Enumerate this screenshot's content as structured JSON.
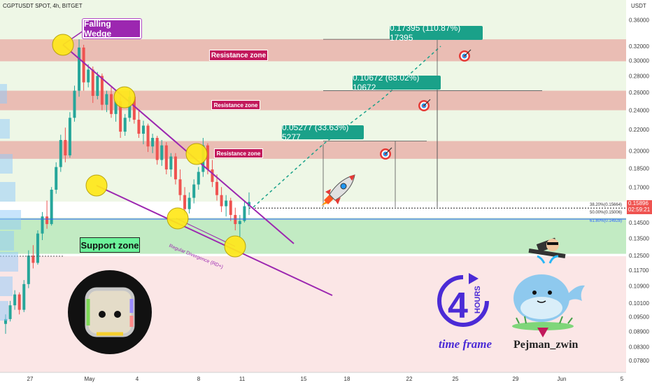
{
  "header": {
    "symbol": "CGPTUSDT SPOT, 4h, BITGET",
    "currency": "USDT"
  },
  "price_badge": {
    "price": "0.15896",
    "countdown": "02:59:21"
  },
  "annotations": {
    "pattern": "Falling Wedge",
    "resistance_1": "Resistance zone",
    "resistance_2": "Resistance zone",
    "resistance_3": "Resistance zone",
    "support": "Support zone",
    "target_1": "0.05277 (33.63%) 5277",
    "target_2": "0.10672 (68.02%) 10672",
    "target_3": "0.17395 (110.87%) 17395",
    "divergence": "Regular Divergence (RD+)",
    "fib_382": "38.20%(0.15664)",
    "fib_50": "50.00%(0.15006)",
    "fib_618": "61.80%(0.14928)",
    "timeframe_number": "4",
    "timeframe_unit": "HOURS",
    "timeframe_text": "time frame",
    "author": "Pejman_zwin"
  },
  "colors": {
    "wedge_line": "#9c27b0",
    "resistance_fill": "#e8a9a3",
    "support_fill": "#b7e8b8",
    "target_box": "#1aa189",
    "bullish_candle": "#26a69a",
    "bearish_candle": "#ef5350",
    "current_price_line": "#2962ff",
    "projection_line": "#1aa189"
  },
  "icons": [
    "rocket-icon",
    "target-icon",
    "target-icon",
    "target-icon",
    "clock-icon",
    "whale-icon",
    "logo-icon"
  ],
  "chart_data": {
    "type": "candlestick",
    "title": "CGPTUSDT SPOT, 4h, BITGET",
    "ylabel": "USDT",
    "ylim": [
      0.074,
      0.372
    ],
    "y_scale": "log",
    "y_ticks": [
      "0.36000",
      "0.32000",
      "0.30000",
      "0.28000",
      "0.26000",
      "0.24000",
      "0.22000",
      "0.20000",
      "0.18500",
      "0.17000",
      "0.15896",
      "0.14500",
      "0.13500",
      "0.12500",
      "0.11700",
      "0.10900",
      "0.10100",
      "0.09500",
      "0.08900",
      "0.08300",
      "0.07800"
    ],
    "x_ticks": [
      "27",
      "May",
      "4",
      "8",
      "11",
      "15",
      "18",
      "22",
      "25",
      "29",
      "Jun",
      "5"
    ],
    "last_price": 0.15896,
    "zones": [
      {
        "name": "Resistance zone",
        "low": 0.299,
        "high": 0.33
      },
      {
        "name": "Resistance zone",
        "low": 0.24,
        "high": 0.262
      },
      {
        "name": "Resistance zone",
        "low": 0.193,
        "high": 0.209
      },
      {
        "name": "Support zone",
        "low": 0.126,
        "high": 0.148
      }
    ],
    "targets": [
      {
        "label": "0.05277 (33.63%) 5277",
        "price": 0.209
      },
      {
        "label": "0.10672 (68.02%) 10672",
        "price": 0.262
      },
      {
        "label": "0.17395 (110.87%) 17395",
        "price": 0.33
      }
    ],
    "fib_levels": [
      {
        "label": "38.20%",
        "price": 0.15664
      },
      {
        "label": "50.00%",
        "price": 0.15006
      },
      {
        "label": "61.80%",
        "price": 0.14928
      }
    ],
    "candles_ohlc": [
      [
        0.092,
        0.096,
        0.088,
        0.094
      ],
      [
        0.094,
        0.102,
        0.093,
        0.1
      ],
      [
        0.1,
        0.107,
        0.098,
        0.105
      ],
      [
        0.105,
        0.106,
        0.096,
        0.098
      ],
      [
        0.098,
        0.112,
        0.097,
        0.11
      ],
      [
        0.11,
        0.128,
        0.108,
        0.125
      ],
      [
        0.125,
        0.131,
        0.118,
        0.121
      ],
      [
        0.121,
        0.14,
        0.12,
        0.138
      ],
      [
        0.138,
        0.152,
        0.134,
        0.149
      ],
      [
        0.149,
        0.16,
        0.141,
        0.144
      ],
      [
        0.144,
        0.17,
        0.143,
        0.168
      ],
      [
        0.168,
        0.19,
        0.165,
        0.186
      ],
      [
        0.186,
        0.215,
        0.182,
        0.21
      ],
      [
        0.21,
        0.222,
        0.19,
        0.196
      ],
      [
        0.196,
        0.238,
        0.194,
        0.232
      ],
      [
        0.232,
        0.268,
        0.228,
        0.262
      ],
      [
        0.262,
        0.33,
        0.255,
        0.318
      ],
      [
        0.318,
        0.322,
        0.262,
        0.272
      ],
      [
        0.272,
        0.295,
        0.266,
        0.288
      ],
      [
        0.288,
        0.292,
        0.248,
        0.256
      ],
      [
        0.256,
        0.285,
        0.252,
        0.28
      ],
      [
        0.28,
        0.283,
        0.24,
        0.246
      ],
      [
        0.246,
        0.262,
        0.238,
        0.258
      ],
      [
        0.258,
        0.266,
        0.232,
        0.236
      ],
      [
        0.236,
        0.254,
        0.228,
        0.25
      ],
      [
        0.25,
        0.255,
        0.212,
        0.218
      ],
      [
        0.218,
        0.236,
        0.214,
        0.232
      ],
      [
        0.232,
        0.262,
        0.228,
        0.255
      ],
      [
        0.255,
        0.258,
        0.226,
        0.23
      ],
      [
        0.23,
        0.24,
        0.212,
        0.216
      ],
      [
        0.216,
        0.229,
        0.206,
        0.224
      ],
      [
        0.224,
        0.226,
        0.199,
        0.204
      ],
      [
        0.204,
        0.216,
        0.198,
        0.212
      ],
      [
        0.212,
        0.214,
        0.188,
        0.192
      ],
      [
        0.192,
        0.21,
        0.187,
        0.205
      ],
      [
        0.205,
        0.208,
        0.18,
        0.184
      ],
      [
        0.184,
        0.198,
        0.178,
        0.195
      ],
      [
        0.195,
        0.198,
        0.172,
        0.176
      ],
      [
        0.176,
        0.184,
        0.16,
        0.164
      ],
      [
        0.164,
        0.17,
        0.15,
        0.154
      ],
      [
        0.154,
        0.166,
        0.151,
        0.162
      ],
      [
        0.162,
        0.176,
        0.158,
        0.172
      ],
      [
        0.172,
        0.186,
        0.168,
        0.182
      ],
      [
        0.182,
        0.212,
        0.178,
        0.205
      ],
      [
        0.205,
        0.207,
        0.18,
        0.184
      ],
      [
        0.184,
        0.192,
        0.17,
        0.174
      ],
      [
        0.174,
        0.18,
        0.16,
        0.164
      ],
      [
        0.164,
        0.17,
        0.152,
        0.156
      ],
      [
        0.156,
        0.164,
        0.149,
        0.16
      ],
      [
        0.16,
        0.162,
        0.146,
        0.15
      ],
      [
        0.15,
        0.155,
        0.14,
        0.144
      ],
      [
        0.144,
        0.15,
        0.136,
        0.146
      ],
      [
        0.146,
        0.16,
        0.145,
        0.156
      ],
      [
        0.156,
        0.166,
        0.15,
        0.159
      ]
    ]
  }
}
